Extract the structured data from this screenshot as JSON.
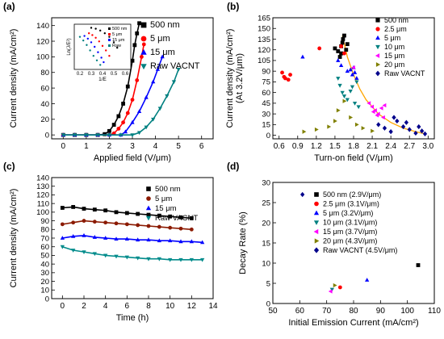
{
  "chart_data": [
    {
      "panel": "(a)",
      "type": "line",
      "xlabel": "Applied field (V/μm)",
      "ylabel": "Current density (mA/cm²)",
      "xlim": [
        -0.5,
        6.5
      ],
      "ylim": [
        -5,
        150
      ],
      "xticks": [
        "0",
        "1",
        "2",
        "3",
        "4",
        "5",
        "6"
      ],
      "yticks": [
        "0",
        "20",
        "40",
        "60",
        "80",
        "100",
        "120",
        "140"
      ],
      "legend": "top-right",
      "series": [
        {
          "name": "500 nm",
          "color": "#000000",
          "marker": "square",
          "x": [
            0,
            0.5,
            1.0,
            1.5,
            1.8,
            2.0,
            2.2,
            2.4,
            2.6,
            2.8,
            3.0,
            3.1,
            3.2,
            3.3
          ],
          "y": [
            0,
            0,
            0,
            0,
            1,
            5,
            13,
            24,
            40,
            62,
            95,
            115,
            130,
            143
          ]
        },
        {
          "name": "5 μm",
          "color": "#ff0000",
          "marker": "circle",
          "x": [
            0,
            0.5,
            1.0,
            1.5,
            2.0,
            2.2,
            2.4,
            2.6,
            2.8,
            3.0,
            3.2,
            3.4,
            3.5
          ],
          "y": [
            0,
            0,
            0,
            0,
            0,
            2,
            8,
            16,
            28,
            45,
            70,
            100,
            116
          ]
        },
        {
          "name": "15 μm",
          "color": "#0000ff",
          "marker": "triangle-up",
          "x": [
            0,
            0.5,
            1.0,
            1.5,
            2.0,
            2.5,
            2.7,
            3.0,
            3.3,
            3.6,
            3.9,
            4.1,
            4.3
          ],
          "y": [
            0,
            0,
            0,
            0,
            0,
            0,
            4,
            16,
            30,
            48,
            68,
            84,
            100
          ]
        },
        {
          "name": "Raw VACNT",
          "color": "#008080",
          "marker": "triangle-down",
          "x": [
            0,
            0.5,
            1.0,
            1.5,
            2.0,
            2.5,
            3.0,
            3.3,
            3.6,
            3.9,
            4.2,
            4.5,
            4.8,
            5.0
          ],
          "y": [
            0,
            0,
            0,
            0,
            0,
            0,
            0,
            3,
            10,
            20,
            34,
            50,
            68,
            84
          ]
        }
      ],
      "inset": {
        "xlabel": "1/E",
        "ylabel": "Ln(J/E²)",
        "xticks": [
          "0.2",
          "0.3",
          "0.4",
          "0.5",
          "0.6"
        ],
        "xlim": [
          0.15,
          0.65
        ],
        "legend": [
          "500 nm",
          "5 μm",
          "15 μm",
          "Raw"
        ],
        "series": [
          {
            "color": "#000000",
            "x": [
              0.3,
              0.34,
              0.38,
              0.42,
              0.46,
              0.5,
              0.53
            ],
            "y": [
              0.92,
              0.9,
              0.86,
              0.8,
              0.72,
              0.6,
              0.48
            ]
          },
          {
            "color": "#ff0000",
            "x": [
              0.28,
              0.31,
              0.34,
              0.37,
              0.4,
              0.43,
              0.46
            ],
            "y": [
              0.8,
              0.76,
              0.7,
              0.62,
              0.52,
              0.42,
              0.3
            ]
          },
          {
            "color": "#0000ff",
            "x": [
              0.24,
              0.27,
              0.3,
              0.33,
              0.36,
              0.39,
              0.41
            ],
            "y": [
              0.74,
              0.68,
              0.6,
              0.5,
              0.38,
              0.26,
              0.16
            ]
          },
          {
            "color": "#008080",
            "x": [
              0.2,
              0.23,
              0.26,
              0.29,
              0.32,
              0.35,
              0.38
            ],
            "y": [
              0.72,
              0.64,
              0.54,
              0.42,
              0.3,
              0.2,
              0.1
            ]
          }
        ]
      }
    },
    {
      "panel": "(b)",
      "type": "scatter",
      "xlabel": "Turn-on field (V/μm)",
      "ylabel": "Current density (mA/cm²)",
      "ylabel2": "(At 3.2V/μm)",
      "xlim": [
        0.5,
        3.1
      ],
      "ylim": [
        -5,
        165
      ],
      "xticks": [
        "0.6",
        "0.9",
        "1.2",
        "1.5",
        "1.8",
        "2.1",
        "2.4",
        "2.7",
        "3.0"
      ],
      "yticks": [
        "0",
        "15",
        "30",
        "45",
        "60",
        "75",
        "90",
        "105",
        "120",
        "135",
        "150",
        "165"
      ],
      "legend": "top-right",
      "series": [
        {
          "name": "500 nm",
          "color": "#000000",
          "marker": "square",
          "x": [
            1.5,
            1.55,
            1.6,
            1.62,
            1.65,
            1.58,
            1.68,
            1.7,
            1.6,
            1.63
          ],
          "y": [
            122,
            118,
            125,
            130,
            140,
            110,
            120,
            128,
            115,
            135
          ]
        },
        {
          "name": "2.5 μm",
          "color": "#ff0000",
          "marker": "circle",
          "x": [
            0.65,
            0.68,
            0.7,
            0.75,
            0.78,
            1.25,
            1.6,
            1.65
          ],
          "y": [
            88,
            82,
            80,
            78,
            85,
            122,
            125,
            115
          ]
        },
        {
          "name": "5 μm",
          "color": "#0000ff",
          "marker": "triangle-up",
          "x": [
            0.98,
            1.55,
            1.6,
            1.7,
            1.75,
            1.78,
            1.8,
            1.82,
            1.85
          ],
          "y": [
            110,
            105,
            98,
            90,
            92,
            85,
            95,
            88,
            80
          ]
        },
        {
          "name": "10 μm",
          "color": "#008080",
          "marker": "triangle-down",
          "x": [
            1.55,
            1.58,
            1.62,
            1.65,
            1.7,
            1.75,
            1.78,
            1.82,
            1.85,
            1.88
          ],
          "y": [
            80,
            70,
            60,
            55,
            50,
            62,
            68,
            45,
            75,
            40
          ]
        },
        {
          "name": "15 μm",
          "color": "#ff00ff",
          "marker": "triangle-left",
          "x": [
            1.8,
            2.05,
            2.1,
            2.15,
            2.2,
            2.25,
            2.3,
            2.18,
            2.12,
            2.28
          ],
          "y": [
            95,
            45,
            40,
            35,
            30,
            38,
            42,
            28,
            33,
            25
          ]
        },
        {
          "name": "20 μm",
          "color": "#808000",
          "marker": "triangle-right",
          "x": [
            1.0,
            1.2,
            1.4,
            1.5,
            1.55,
            1.65,
            1.75,
            1.85,
            1.95,
            2.1
          ],
          "y": [
            5,
            8,
            12,
            20,
            35,
            48,
            25,
            15,
            10,
            6
          ]
        },
        {
          "name": "Raw VACNT",
          "color": "#00008b",
          "marker": "diamond",
          "x": [
            2.2,
            2.3,
            2.4,
            2.5,
            2.6,
            2.7,
            2.8,
            2.9,
            2.95,
            2.45,
            2.65,
            2.85
          ],
          "y": [
            15,
            10,
            5,
            20,
            12,
            8,
            3,
            6,
            2,
            25,
            18,
            12
          ]
        }
      ],
      "fit": {
        "color": "#ffa500",
        "x": [
          1.62,
          1.7,
          1.8,
          1.9,
          2.0,
          2.2,
          2.4,
          2.6,
          2.8,
          2.95
        ],
        "y": [
          140,
          110,
          85,
          65,
          50,
          30,
          18,
          10,
          5,
          2
        ]
      }
    },
    {
      "panel": "(c)",
      "type": "line",
      "xlabel": "Time (h)",
      "ylabel": "Current density (mA/cm²)",
      "xlim": [
        -1,
        14
      ],
      "ylim": [
        0,
        140
      ],
      "xticks": [
        "0",
        "2",
        "4",
        "6",
        "8",
        "10",
        "12",
        "14"
      ],
      "yticks": [
        "0",
        "10",
        "20",
        "30",
        "40",
        "50",
        "60",
        "70",
        "80",
        "90",
        "100",
        "110",
        "120",
        "130",
        "140"
      ],
      "legend": "top-right",
      "series": [
        {
          "name": "500 nm",
          "color": "#000000",
          "marker": "square",
          "x": [
            0,
            1,
            2,
            3,
            4,
            5,
            6,
            7,
            8,
            9,
            10,
            11,
            12
          ],
          "y": [
            105,
            106,
            104,
            103,
            102,
            100,
            99,
            98,
            97,
            96,
            95,
            94,
            93
          ]
        },
        {
          "name": "5 μm",
          "color": "#8b1a00",
          "marker": "circle",
          "x": [
            0,
            1,
            2,
            3,
            4,
            5,
            6,
            7,
            8,
            9,
            10,
            11,
            12
          ],
          "y": [
            86,
            88,
            90,
            89,
            88,
            87,
            86,
            85,
            84,
            83,
            82,
            81,
            80
          ]
        },
        {
          "name": "15 μm",
          "color": "#0000ff",
          "marker": "triangle-up",
          "x": [
            0,
            1,
            2,
            3,
            4,
            5,
            6,
            7,
            8,
            9,
            10,
            11,
            12,
            13
          ],
          "y": [
            70,
            72,
            73,
            71,
            70,
            69,
            69,
            68,
            68,
            67,
            67,
            66,
            66,
            65
          ]
        },
        {
          "name": "Raw VACNT",
          "color": "#008b8b",
          "marker": "triangle-down",
          "x": [
            0,
            1,
            2,
            3,
            4,
            5,
            6,
            7,
            8,
            9,
            10,
            11,
            12,
            13
          ],
          "y": [
            60,
            56,
            54,
            52,
            50,
            49,
            48,
            47,
            46,
            46,
            45,
            45,
            45,
            45
          ]
        }
      ]
    },
    {
      "panel": "(d)",
      "type": "scatter",
      "xlabel": "Initial Emission Current (mA/cm²)",
      "ylabel": "Decay Rate (%)",
      "xlim": [
        50,
        110
      ],
      "ylim": [
        0,
        30
      ],
      "xticks": [
        "50",
        "60",
        "70",
        "80",
        "90",
        "100",
        "110"
      ],
      "yticks": [
        "0",
        "5",
        "10",
        "15",
        "20",
        "25",
        "30"
      ],
      "legend": "top-right",
      "series": [
        {
          "name": "500 nm (2.9V/μm)",
          "color": "#000000",
          "marker": "square",
          "x": [
            104
          ],
          "y": [
            9.5
          ]
        },
        {
          "name": "2.5 μm (3.1V/μm)",
          "color": "#ff0000",
          "marker": "circle",
          "x": [
            75
          ],
          "y": [
            4
          ]
        },
        {
          "name": "5 μm (3.2V/μm)",
          "color": "#0000ff",
          "marker": "triangle-up",
          "x": [
            85
          ],
          "y": [
            5.8
          ]
        },
        {
          "name": "10 μm (3.1V/μm)",
          "color": "#008080",
          "marker": "triangle-down",
          "x": [
            72
          ],
          "y": [
            3.5
          ]
        },
        {
          "name": "15 μm (3.7V/μm)",
          "color": "#ff00ff",
          "marker": "triangle-left",
          "x": [
            71.5
          ],
          "y": [
            3.0
          ]
        },
        {
          "name": "20 μm (4.3V/μm)",
          "color": "#808000",
          "marker": "triangle-right",
          "x": [
            73
          ],
          "y": [
            4.5
          ]
        },
        {
          "name": "Raw VACNT (4.5V/μm)",
          "color": "#00008b",
          "marker": "diamond",
          "x": [
            61
          ],
          "y": [
            27
          ]
        }
      ]
    }
  ]
}
